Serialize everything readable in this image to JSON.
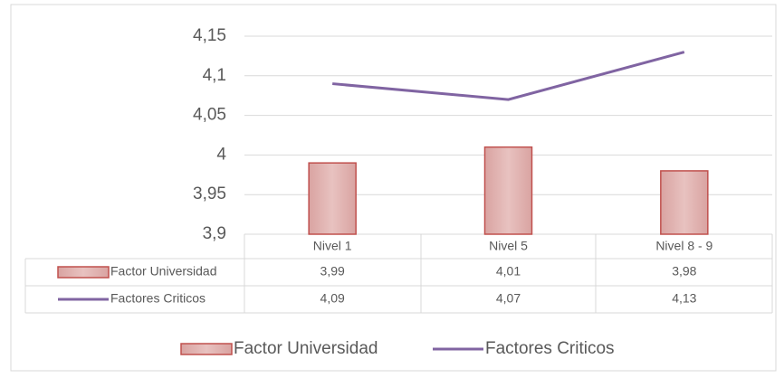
{
  "chart_data": {
    "type": "bar",
    "categories": [
      "Nivel 1",
      "Nivel 5",
      "Nivel 8 - 9"
    ],
    "series": [
      {
        "name": "Factor Universidad",
        "type": "bar",
        "color": "#c0504d",
        "values": [
          3.99,
          4.01,
          3.98
        ],
        "value_labels": [
          "3,99",
          "4,01",
          "3,98"
        ]
      },
      {
        "name": "Factores Criticos",
        "type": "line",
        "color": "#8064a2",
        "values": [
          4.09,
          4.07,
          4.13
        ],
        "value_labels": [
          "4,09",
          "4,07",
          "4,13"
        ]
      }
    ],
    "ylim": [
      3.9,
      4.15
    ],
    "yticks": [
      {
        "value": 3.9,
        "label": "3,9"
      },
      {
        "value": 3.95,
        "label": "3,95"
      },
      4,
      {
        "value": 4.05,
        "label": "4,05"
      },
      {
        "value": 4.1,
        "label": "4,1"
      },
      {
        "value": 4.15,
        "label": "4,15"
      }
    ],
    "grid": true
  }
}
